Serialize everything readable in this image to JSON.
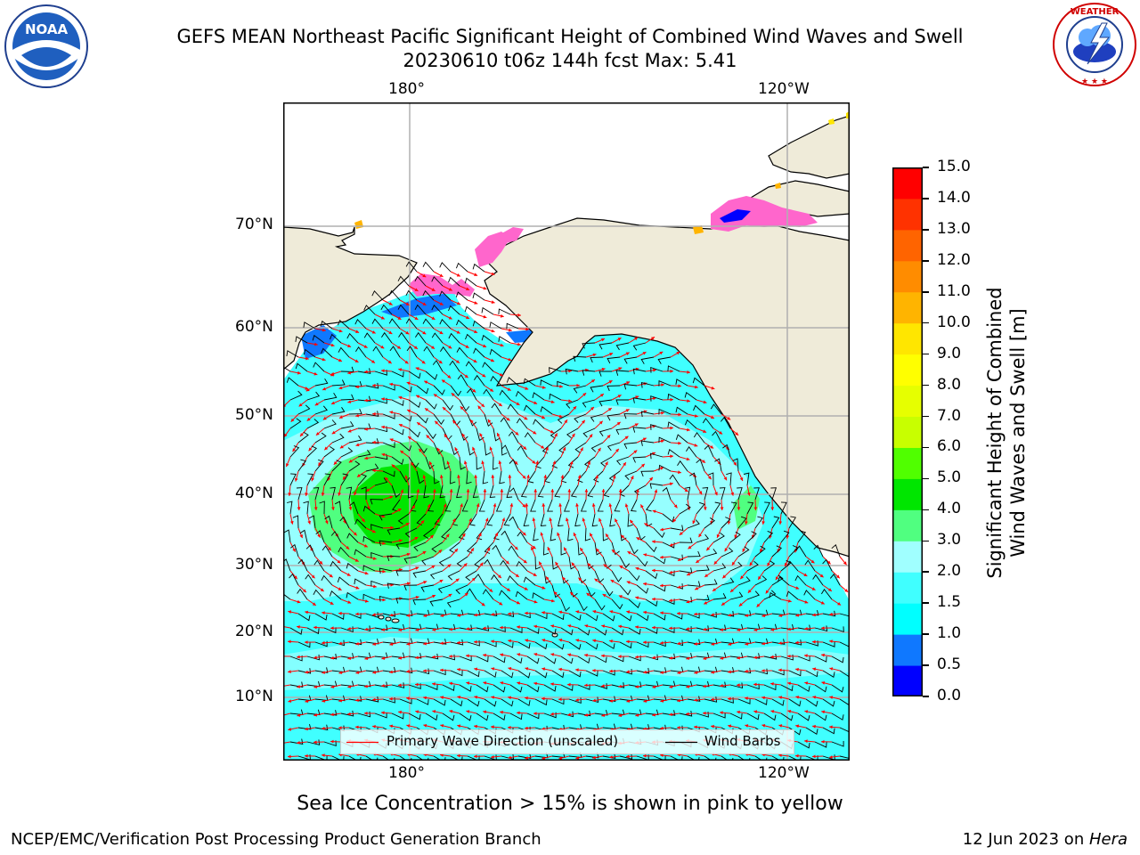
{
  "title": {
    "line1": "GEFS MEAN Northeast Pacific Significant Height of Combined Wind Waves and Swell",
    "line2": "20230610 t06z 144h fcst   Max: 5.41"
  },
  "logos": {
    "left": {
      "name": "NOAA",
      "ring_text": "NATIONAL OCEANIC AND ATMOSPHERIC ADMINISTRATION · U.S. DEPARTMENT OF COMMERCE"
    },
    "right": {
      "name": "NATIONAL WEATHER SERVICE"
    }
  },
  "map": {
    "lon_ticks_top": [
      "180°",
      "120°W"
    ],
    "lon_ticks_bottom": [
      "180°",
      "120°W"
    ],
    "lat_ticks": [
      "70°N",
      "60°N",
      "50°N",
      "40°N",
      "30°N",
      "20°N",
      "10°N"
    ],
    "land_color": "#efebd9",
    "grid_color": "#b0b0b0"
  },
  "legend": {
    "wave_label": "Primary Wave Direction (unscaled)",
    "wind_label": "Wind Barbs",
    "wave_color": "#ff0000",
    "wind_color": "#000000"
  },
  "colorbar": {
    "label_line1": "Significant Height of Combined",
    "label_line2": "Wind Waves and Swell [m]",
    "ticks": [
      "0.0",
      "0.5",
      "1.0",
      "1.5",
      "2.0",
      "3.0",
      "4.0",
      "5.0",
      "6.0",
      "7.0",
      "8.0",
      "9.0",
      "10.0",
      "11.0",
      "12.0",
      "13.0",
      "14.0",
      "15.0"
    ],
    "colors": [
      "#0000ff",
      "#0f78ff",
      "#00ffff",
      "#40ffff",
      "#a0ffff",
      "#50ff80",
      "#00e600",
      "#50ff00",
      "#c8ff00",
      "#e6ff00",
      "#ffff00",
      "#ffe600",
      "#ffb400",
      "#ff8c00",
      "#ff6400",
      "#ff3200",
      "#ff0000"
    ]
  },
  "footer": {
    "note": "Sea Ice Concentration > 15% is shown in pink to yellow",
    "credit": "NCEP/EMC/Verification Post Processing Product Generation Branch",
    "date": "12 Jun 2023 on ",
    "host": "Hera"
  }
}
